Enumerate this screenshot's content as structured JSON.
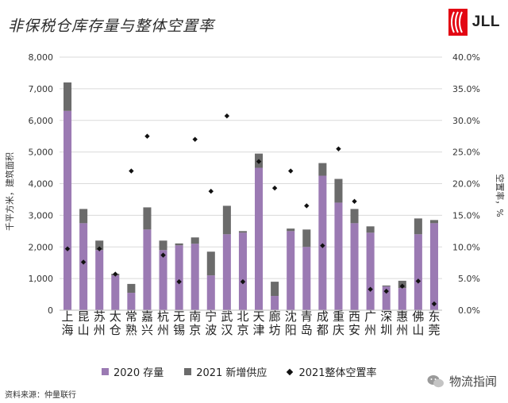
{
  "title": "非保税仓库存量与整体空置率",
  "logo": {
    "text": "JLL",
    "icon": "jll-logo-icon"
  },
  "source": "资料来源：仲量联行",
  "watermark": {
    "text": "物流指闻",
    "icon": "wechat-icon"
  },
  "legend": {
    "stock_2020": "2020 存量",
    "supply_2021": "2021 新增供应",
    "vacancy_2021": "2021整体空置率"
  },
  "colors": {
    "stock_2020": "#9b7ab3",
    "supply_2021": "#6b6b6b",
    "vacancy": "#111111",
    "grid": "#dadada"
  },
  "chart_data": {
    "type": "bar",
    "stacked": true,
    "title": "非保税仓库存量与整体空置率",
    "ylabel": "千平方米，建筑面积",
    "y2label": "空置率，%",
    "ylim": [
      0,
      8000
    ],
    "y2lim": [
      0,
      40
    ],
    "grid": true,
    "legend_position": "bottom",
    "y_ticks": [
      "0",
      "1,000",
      "2,000",
      "3,000",
      "4,000",
      "5,000",
      "6,000",
      "7,000",
      "8,000"
    ],
    "y2_ticks": [
      "0.0%",
      "5.0%",
      "10.0%",
      "15.0%",
      "20.0%",
      "25.0%",
      "30.0%",
      "35.0%",
      "40.0%"
    ],
    "categories": [
      "上海",
      "昆山",
      "苏州",
      "太仓",
      "常熟",
      "嘉兴",
      "杭州",
      "无锡",
      "南京",
      "宁波",
      "武汉",
      "北京",
      "天津",
      "廊坊",
      "沈阳",
      "青岛",
      "成都",
      "重庆",
      "西安",
      "广州",
      "深圳",
      "惠州",
      "佛山",
      "东莞"
    ],
    "series": [
      {
        "name": "2020 存量",
        "type": "bar",
        "values": [
          6300,
          2750,
          1900,
          1100,
          550,
          2550,
          1900,
          2050,
          2100,
          1100,
          2400,
          2450,
          4500,
          450,
          2500,
          2000,
          4250,
          3400,
          2750,
          2450,
          750,
          700,
          2400,
          2750
        ]
      },
      {
        "name": "2021 新增供应",
        "type": "bar",
        "values": [
          900,
          450,
          300,
          50,
          280,
          700,
          300,
          60,
          200,
          750,
          900,
          50,
          450,
          450,
          80,
          550,
          400,
          750,
          450,
          200,
          30,
          230,
          500,
          100
        ]
      },
      {
        "name": "2021整体空置率",
        "type": "scatter",
        "axis": "y2",
        "values": [
          9.7,
          7.6,
          9.7,
          5.7,
          22.0,
          27.5,
          8.7,
          4.5,
          27.0,
          18.8,
          30.7,
          4.5,
          23.5,
          19.3,
          22.0,
          16.5,
          10.2,
          25.5,
          17.2,
          3.3,
          3.0,
          3.8,
          4.6,
          1.0
        ]
      }
    ]
  }
}
